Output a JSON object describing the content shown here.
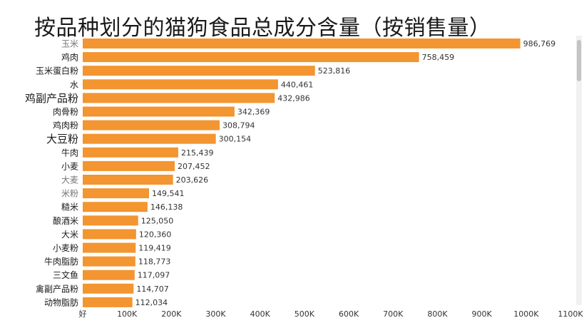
{
  "chart_data": {
    "type": "bar",
    "orientation": "horizontal",
    "title": "按品种划分的猫狗食品总成分含量（按销售量）",
    "categories": [
      "玉米",
      "鸡肉",
      "玉米蛋白粉",
      "水",
      "鸡副产品粉",
      "肉骨粉",
      "鸡肉粉",
      "大豆粉",
      "牛肉",
      "小麦",
      "大麦",
      "米粉",
      "糙米",
      "酿酒米",
      "大米",
      "小麦粉",
      "牛肉脂肪",
      "三文鱼",
      "禽副产品粉",
      "动物脂肪"
    ],
    "values": [
      986769,
      758459,
      523816,
      440461,
      432986,
      342369,
      308794,
      300154,
      215439,
      207452,
      203626,
      149541,
      146138,
      125050,
      120360,
      119419,
      118773,
      117097,
      114707,
      112034
    ],
    "value_labels": [
      "986,769",
      "758,459",
      "523,816",
      "440,461",
      "432,986",
      "342,369",
      "308,794",
      "300,154",
      "215,439",
      "207,452",
      "203,626",
      "149,541",
      "146,138",
      "125,050",
      "120,360",
      "119,419",
      "118,773",
      "117,097",
      "114,707",
      "112,034"
    ],
    "x_ticks": [
      "好",
      "100K",
      "200K",
      "300K",
      "400K",
      "500K",
      "600K",
      "700K",
      "800K",
      "900K",
      "1000K",
      "1100K"
    ],
    "xlim": [
      0,
      1100000
    ],
    "bar_color": "#f39530",
    "xlabel": "",
    "ylabel": "",
    "grid": false
  }
}
